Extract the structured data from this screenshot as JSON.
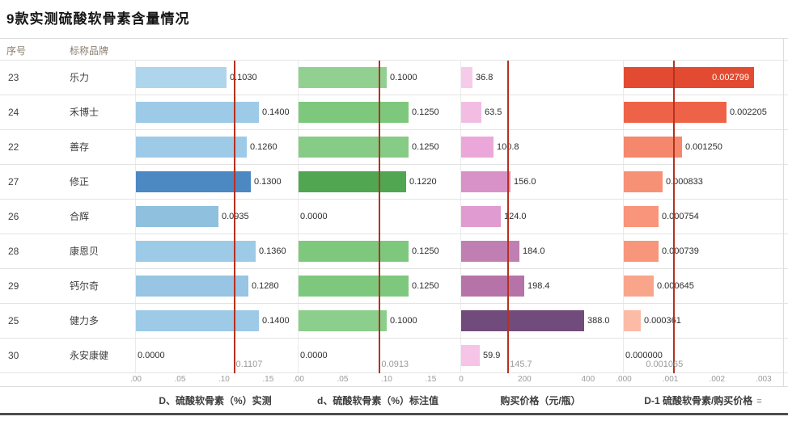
{
  "title": "9款实测硫酸软骨素含量情况",
  "header": {
    "serial": "序号",
    "brand": "标称品牌"
  },
  "footer": {
    "sort_icon": "≡"
  },
  "accent_colors": {
    "reference_line": "#b5321f"
  },
  "chart_data": {
    "type": "bar",
    "orientation": "horizontal",
    "title": "9款实测硫酸软骨素含量情况",
    "row_header_columns": [
      "序号",
      "标称品牌"
    ],
    "legend": "none",
    "charts": [
      {
        "axis_title": "D、硫酸软骨素（%）实测",
        "domain": [
          0,
          0.18
        ],
        "ticks": [
          {
            "value": 0,
            "label": ".00"
          },
          {
            "value": 0.05,
            "label": ".05"
          },
          {
            "value": 0.1,
            "label": ".10"
          },
          {
            "value": 0.15,
            "label": ".15"
          }
        ],
        "average": 0.1107,
        "average_label": "0.1107"
      },
      {
        "axis_title": "d、硫酸软骨素（%）标注值",
        "domain": [
          0,
          0.18
        ],
        "ticks": [
          {
            "value": 0,
            "label": ".00"
          },
          {
            "value": 0.05,
            "label": ".05"
          },
          {
            "value": 0.1,
            "label": ".10"
          },
          {
            "value": 0.15,
            "label": ".15"
          }
        ],
        "average": 0.0913,
        "average_label": "0.0913"
      },
      {
        "axis_title": "购买价格（元/瓶）",
        "domain": [
          0,
          500
        ],
        "ticks": [
          {
            "value": 0,
            "label": "0"
          },
          {
            "value": 200,
            "label": "200"
          },
          {
            "value": 400,
            "label": "400"
          }
        ],
        "average": 145.7,
        "average_label": "145.7"
      },
      {
        "axis_title": "D-1 硫酸软骨素/购买价格",
        "domain": [
          0,
          0.0034
        ],
        "ticks": [
          {
            "value": 0,
            "label": ".000"
          },
          {
            "value": 0.001,
            "label": ".001"
          },
          {
            "value": 0.002,
            "label": ".002"
          },
          {
            "value": 0.003,
            "label": ".003"
          }
        ],
        "average": 0.001065,
        "average_label": "0.001065"
      }
    ],
    "rows": [
      {
        "serial": "23",
        "brand": "乐力",
        "values": [
          0.103,
          0.1,
          36.8,
          0.002799
        ],
        "labels": [
          "0.1030",
          "0.1000",
          "36.8",
          "0.002799"
        ],
        "colors": [
          "#aed5ec",
          "#92d092",
          "#f6cbea",
          "#e24b31"
        ],
        "label_inside": [
          false,
          false,
          false,
          true
        ]
      },
      {
        "serial": "24",
        "brand": "禾博士",
        "values": [
          0.14,
          0.125,
          63.5,
          0.002205
        ],
        "labels": [
          "0.1400",
          "0.1250",
          "63.5",
          "0.002205"
        ],
        "colors": [
          "#9dcae7",
          "#7ec87e",
          "#f3bde3",
          "#ee6347"
        ],
        "label_inside": [
          false,
          false,
          false,
          false
        ]
      },
      {
        "serial": "22",
        "brand": "善存",
        "values": [
          0.126,
          0.125,
          100.8,
          0.00125
        ],
        "labels": [
          "0.1260",
          "0.1250",
          "100.8",
          "0.001250"
        ],
        "colors": [
          "#9dcae7",
          "#86cb86",
          "#eba7d9",
          "#f4876c"
        ],
        "label_inside": [
          false,
          false,
          false,
          false
        ]
      },
      {
        "serial": "27",
        "brand": "修正",
        "values": [
          0.13,
          0.122,
          156.0,
          0.000833
        ],
        "labels": [
          "0.1300",
          "0.1220",
          "156.0",
          "0.000833"
        ],
        "colors": [
          "#4c88c2",
          "#51a651",
          "#d892c7",
          "#f79175"
        ],
        "label_inside": [
          false,
          false,
          false,
          false
        ]
      },
      {
        "serial": "26",
        "brand": "合辉",
        "values": [
          0.0935,
          0,
          124.0,
          0.000754
        ],
        "labels": [
          "0.0935",
          "0.0000",
          "124.0",
          "0.000754"
        ],
        "colors": [
          "#8fc0de",
          "#7ec87e",
          "#e09cd0",
          "#f8957a"
        ],
        "label_inside": [
          false,
          false,
          false,
          false
        ]
      },
      {
        "serial": "28",
        "brand": "康恩贝",
        "values": [
          0.136,
          0.125,
          184.0,
          0.000739
        ],
        "labels": [
          "0.1360",
          "0.1250",
          "184.0",
          "0.000739"
        ],
        "colors": [
          "#9dcae7",
          "#7ec87e",
          "#c07fb2",
          "#f8967b"
        ],
        "label_inside": [
          false,
          false,
          false,
          false
        ]
      },
      {
        "serial": "29",
        "brand": "钙尔奇",
        "values": [
          0.128,
          0.125,
          198.4,
          0.000645
        ],
        "labels": [
          "0.1280",
          "0.1250",
          "198.4",
          "0.000645"
        ],
        "colors": [
          "#97c5e3",
          "#7ec87e",
          "#b673a8",
          "#f9a58b"
        ],
        "label_inside": [
          false,
          false,
          false,
          false
        ]
      },
      {
        "serial": "25",
        "brand": "健力多",
        "values": [
          0.14,
          0.1,
          388.0,
          0.000361
        ],
        "labels": [
          "0.1400",
          "0.1000",
          "388.0",
          "0.000361"
        ],
        "colors": [
          "#9dcae7",
          "#8ccf8c",
          "#714b7c",
          "#fbbba6"
        ],
        "label_inside": [
          false,
          false,
          false,
          false
        ]
      },
      {
        "serial": "30",
        "brand": "永安康健",
        "values": [
          0,
          0,
          59.9,
          0
        ],
        "labels": [
          "0.0000",
          "0.0000",
          "59.9",
          "0.000000"
        ],
        "colors": [
          "#9dcae7",
          "#7ec87e",
          "#f5c4e6",
          "#fbbba6"
        ],
        "label_inside": [
          false,
          false,
          false,
          false
        ]
      }
    ]
  }
}
